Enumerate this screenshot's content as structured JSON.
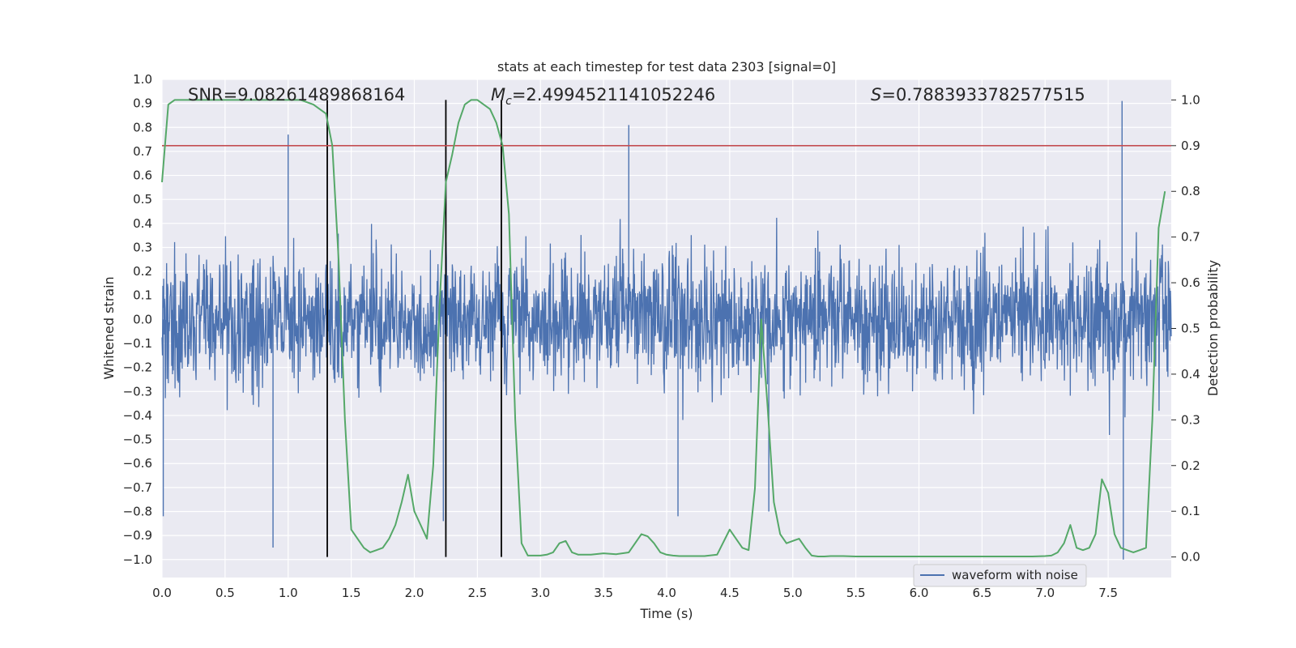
{
  "chart_data": {
    "type": "line",
    "title": "stats at each timestep for test data 2303 [signal=0]",
    "xlabel": "Time (s)",
    "ylabel": "Whitened strain",
    "y2label": "Detection probability",
    "xlim": [
      0.0,
      8.0
    ],
    "ylim": [
      -1.075,
      1.0
    ],
    "y2lim": [
      -0.045,
      1.045
    ],
    "x_ticks": [
      0.0,
      0.5,
      1.0,
      1.5,
      2.0,
      2.5,
      3.0,
      3.5,
      4.0,
      4.5,
      5.0,
      5.5,
      6.0,
      6.5,
      7.0,
      7.5
    ],
    "y_ticks": [
      -1.0,
      -0.9,
      -0.8,
      -0.7,
      -0.6,
      -0.5,
      -0.4,
      -0.3,
      -0.2,
      -0.1,
      0.0,
      0.1,
      0.2,
      0.3,
      0.4,
      0.5,
      0.6,
      0.7,
      0.8,
      0.9,
      1.0
    ],
    "y2_ticks": [
      0.0,
      0.1,
      0.2,
      0.3,
      0.4,
      0.5,
      0.6,
      0.7,
      0.8,
      0.9,
      1.0
    ],
    "grid": true,
    "annotations": {
      "snr": "SNR=9.08261489868164",
      "mc_symbol": "M",
      "mc_sub": "c",
      "mc_value": "=2.4994521141052246",
      "s_symbol": "S",
      "s_value": "=0.7883933782577515"
    },
    "legend": {
      "placement": "lower-right",
      "entries": [
        "waveform with noise"
      ]
    },
    "colors": {
      "waveform": "#4c72b0",
      "probability": "#55a868",
      "threshold": "#c44e52",
      "markers": "#000000",
      "background": "#eaeaf2"
    },
    "threshold_probability": 0.9,
    "vertical_markers_x": [
      1.31,
      2.25,
      2.69
    ],
    "waveform_envelope": {
      "note": "dense whitened-noise trace, amplitude envelope",
      "typical_upper": 0.45,
      "typical_lower": -0.45,
      "peaks": [
        {
          "x": 0.01,
          "y": -0.82
        },
        {
          "x": 0.88,
          "y": -0.95
        },
        {
          "x": 1.0,
          "y": 0.77
        },
        {
          "x": 2.23,
          "y": -0.84
        },
        {
          "x": 3.7,
          "y": 0.81
        },
        {
          "x": 4.09,
          "y": -0.82
        },
        {
          "x": 4.81,
          "y": -0.8
        },
        {
          "x": 7.61,
          "y": 0.91
        },
        {
          "x": 7.62,
          "y": -1.0
        }
      ]
    },
    "series": [
      {
        "name": "",
        "axis": "right",
        "x": [
          0.0,
          0.05,
          0.1,
          0.15,
          0.3,
          0.5,
          0.7,
          0.9,
          1.1,
          1.2,
          1.3,
          1.35,
          1.4,
          1.45,
          1.5,
          1.6,
          1.65,
          1.7,
          1.75,
          1.8,
          1.85,
          1.9,
          1.95,
          2.0,
          2.05,
          2.1,
          2.15,
          2.2,
          2.25,
          2.3,
          2.35,
          2.4,
          2.45,
          2.5,
          2.55,
          2.6,
          2.65,
          2.7,
          2.75,
          2.8,
          2.85,
          2.9,
          2.95,
          3.0,
          3.05,
          3.1,
          3.15,
          3.2,
          3.25,
          3.3,
          3.35,
          3.4,
          3.5,
          3.6,
          3.7,
          3.8,
          3.85,
          3.9,
          3.95,
          4.0,
          4.05,
          4.1,
          4.2,
          4.3,
          4.4,
          4.5,
          4.55,
          4.6,
          4.65,
          4.7,
          4.75,
          4.8,
          4.85,
          4.9,
          4.95,
          5.0,
          5.05,
          5.1,
          5.15,
          5.2,
          5.25,
          5.3,
          5.4,
          5.5,
          5.6,
          5.8,
          6.0,
          6.2,
          6.4,
          6.6,
          6.8,
          6.9,
          7.0,
          7.05,
          7.1,
          7.15,
          7.2,
          7.25,
          7.3,
          7.35,
          7.4,
          7.45,
          7.5,
          7.55,
          7.6,
          7.65,
          7.7,
          7.75,
          7.8,
          7.85,
          7.9,
          7.95
        ],
        "values": [
          0.82,
          0.99,
          1.0,
          1.0,
          1.0,
          1.0,
          1.0,
          1.0,
          1.0,
          0.99,
          0.97,
          0.9,
          0.65,
          0.3,
          0.06,
          0.02,
          0.01,
          0.015,
          0.02,
          0.04,
          0.07,
          0.12,
          0.18,
          0.1,
          0.07,
          0.04,
          0.2,
          0.55,
          0.82,
          0.88,
          0.95,
          0.99,
          1.0,
          1.0,
          0.99,
          0.98,
          0.95,
          0.9,
          0.75,
          0.3,
          0.03,
          0.003,
          0.003,
          0.003,
          0.005,
          0.01,
          0.03,
          0.035,
          0.01,
          0.005,
          0.005,
          0.005,
          0.008,
          0.006,
          0.01,
          0.05,
          0.045,
          0.03,
          0.01,
          0.005,
          0.003,
          0.002,
          0.002,
          0.002,
          0.005,
          0.06,
          0.04,
          0.02,
          0.015,
          0.15,
          0.52,
          0.33,
          0.12,
          0.05,
          0.03,
          0.035,
          0.04,
          0.02,
          0.003,
          0.001,
          0.001,
          0.002,
          0.002,
          0.001,
          0.001,
          0.001,
          0.001,
          0.001,
          0.001,
          0.001,
          0.001,
          0.001,
          0.002,
          0.003,
          0.01,
          0.03,
          0.07,
          0.02,
          0.015,
          0.02,
          0.05,
          0.17,
          0.14,
          0.05,
          0.02,
          0.015,
          0.01,
          0.015,
          0.02,
          0.3,
          0.72,
          0.8
        ]
      }
    ]
  }
}
